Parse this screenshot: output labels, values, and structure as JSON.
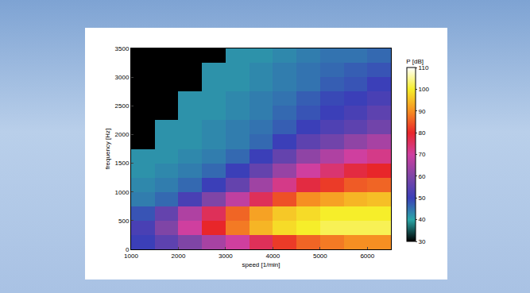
{
  "chart_data": {
    "type": "heatmap",
    "xlabel": "speed [1/min]",
    "ylabel": "frequency [Hz]",
    "x": [
      1250,
      1750,
      2250,
      2750,
      3250,
      3750,
      4250,
      4750,
      5250,
      5750,
      6250
    ],
    "y": [
      125,
      375,
      625,
      875,
      1125,
      1375,
      1625,
      1875,
      2125,
      2375,
      2625,
      2875,
      3125,
      3375
    ],
    "z": [
      [
        50,
        55,
        60,
        65,
        70,
        76,
        82,
        86,
        88,
        90,
        90
      ],
      [
        52,
        60,
        70,
        80,
        88,
        94,
        98,
        100,
        102,
        102,
        102
      ],
      [
        48,
        56,
        66,
        76,
        86,
        92,
        96,
        98,
        100,
        100,
        100
      ],
      [
        44,
        46,
        52,
        60,
        68,
        76,
        84,
        90,
        92,
        94,
        95
      ],
      [
        43,
        44,
        46,
        50,
        56,
        64,
        72,
        78,
        82,
        85,
        86
      ],
      [
        42,
        43,
        44,
        46,
        50,
        56,
        63,
        70,
        74,
        78,
        80
      ],
      [
        42,
        42,
        43,
        44,
        46,
        50,
        56,
        62,
        66,
        70,
        72
      ],
      [
        30,
        42,
        42,
        43,
        44,
        46,
        50,
        55,
        58,
        62,
        65
      ],
      [
        30,
        42,
        42,
        43,
        44,
        45,
        47,
        50,
        53,
        55,
        58
      ],
      [
        30,
        30,
        42,
        42,
        43,
        44,
        46,
        48,
        50,
        52,
        55
      ],
      [
        30,
        30,
        42,
        42,
        43,
        44,
        45,
        47,
        49,
        50,
        52
      ],
      [
        30,
        30,
        30,
        42,
        42,
        43,
        44,
        45,
        47,
        48,
        50
      ],
      [
        30,
        30,
        30,
        42,
        42,
        43,
        44,
        45,
        46,
        47,
        48
      ],
      [
        30,
        30,
        30,
        30,
        42,
        42,
        43,
        44,
        45,
        45,
        46
      ]
    ],
    "xlim": [
      1000,
      6500
    ],
    "xticks": [
      1000,
      2000,
      3000,
      4000,
      5000,
      6000
    ],
    "ylim": [
      0,
      3500
    ],
    "yticks": [
      0,
      500,
      1000,
      1500,
      2000,
      2500,
      3000,
      3500
    ],
    "colorbar_title": "P [dB]",
    "zlim": [
      30,
      110
    ],
    "zticks": [
      30,
      40,
      50,
      60,
      70,
      80,
      90,
      100,
      110
    ]
  }
}
